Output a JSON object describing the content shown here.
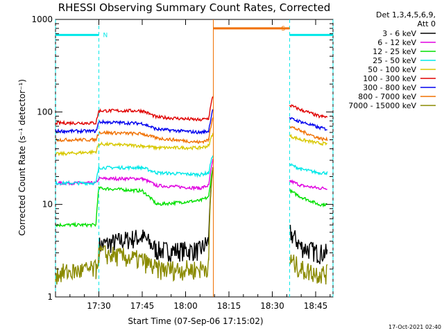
{
  "chart_data": {
    "type": "line",
    "title": "RHESSI Observing Summary Count Rates, Corrected",
    "xlabel": "Start Time (07-Sep-06 17:15:02)",
    "ylabel": "Corrected Count Rate (s⁻¹ detector⁻¹)",
    "yscale": "log",
    "ylim": [
      1,
      1000
    ],
    "xlim_minutes": [
      17.25,
      18.85
    ],
    "x_ticks": [
      "17:30",
      "17:45",
      "18:00",
      "18:15",
      "18:30",
      "18:45"
    ],
    "y_ticks": [
      "1",
      "10",
      "100",
      "1000"
    ],
    "legend_header": [
      "Det 1,3,4,5,6,9,",
      "Att 0"
    ],
    "legend_position": "right",
    "timestamp": "17-Oct-2021 02:40",
    "time_points": [
      "17:15",
      "17:29",
      "17:30",
      "17:45",
      "17:50",
      "18:05",
      "18:08",
      "18:09.5",
      "18:35.5",
      "18:36",
      "18:40",
      "18:46",
      "18:49"
    ],
    "series": [
      {
        "name": "3 - 6 keV",
        "color": "#000000",
        "values": [
          null,
          null,
          3.6,
          4.5,
          3.2,
          3.2,
          4,
          25,
          null,
          5,
          3.5,
          3,
          3
        ]
      },
      {
        "name": "6 - 12 keV",
        "color": "#e000e0",
        "values": [
          17,
          17,
          19,
          19,
          16,
          15,
          16,
          30,
          null,
          18,
          16,
          15,
          15
        ]
      },
      {
        "name": "12 - 25 keV",
        "color": "#00e000",
        "values": [
          6,
          6,
          15,
          14,
          10,
          11,
          12,
          25,
          null,
          14,
          12,
          10,
          10
        ]
      },
      {
        "name": "25 - 50 keV",
        "color": "#00e8e8",
        "values": [
          17,
          17,
          25,
          25,
          22,
          21,
          22,
          35,
          null,
          27,
          24,
          22,
          22
        ]
      },
      {
        "name": "50 - 100 keV",
        "color": "#d8c800",
        "values": [
          35,
          37,
          45,
          43,
          41,
          41,
          43,
          60,
          null,
          55,
          50,
          46,
          45
        ]
      },
      {
        "name": "100 - 300 keV",
        "color": "#e00000",
        "values": [
          76,
          76,
          103,
          103,
          88,
          82,
          85,
          150,
          null,
          118,
          105,
          90,
          88
        ]
      },
      {
        "name": "300 - 800 keV",
        "color": "#0000ee",
        "values": [
          62,
          62,
          78,
          75,
          65,
          60,
          62,
          110,
          null,
          85,
          78,
          68,
          65
        ]
      },
      {
        "name": "800 - 7000 keV",
        "color": "#f07000",
        "values": [
          50,
          50,
          60,
          58,
          52,
          47,
          50,
          90,
          null,
          70,
          62,
          52,
          50
        ]
      },
      {
        "name": "7000 - 15000 keV",
        "color": "#8a8a00",
        "values": [
          1.8,
          2,
          3,
          2.5,
          2,
          2,
          2.2,
          25,
          null,
          2.5,
          2,
          1.8,
          1.8
        ]
      }
    ],
    "flags": [
      {
        "label": "N",
        "color": "#00e8e8",
        "segments": [
          [
            17.25,
            17.5
          ],
          [
            18.6,
            18.85
          ]
        ],
        "level": 680
      },
      {
        "label": "S",
        "color": "#f07000",
        "segments": [
          [
            18.16,
            18.6
          ]
        ],
        "level": 800
      }
    ],
    "markers": [
      {
        "color": "#00e8e8",
        "x": [
          17.25,
          17.5,
          18.6,
          18.85
        ]
      },
      {
        "color": "#f07000",
        "x": [
          18.16
        ]
      }
    ]
  }
}
